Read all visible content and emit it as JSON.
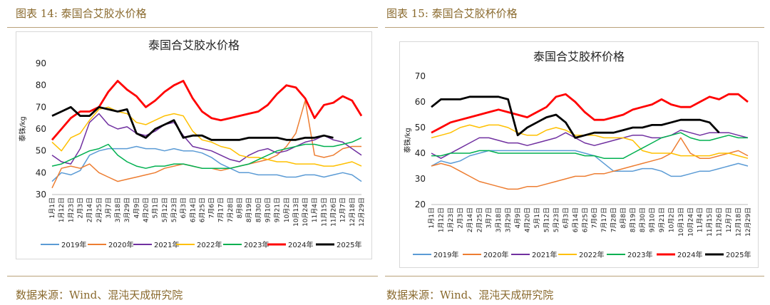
{
  "left_figure": {
    "caption": "图表 14:  泰国合艾胶水价格",
    "source": "数据来源：Wind、混沌天成研究院"
  },
  "right_figure": {
    "caption": "图表 15:  泰国合艾胶杯价格",
    "source": "数据来源：Wind、混沌天成研究院"
  },
  "colors": {
    "2019年": "#5b9bd5",
    "2020年": "#ed7d31",
    "2021年": "#7030a0",
    "2022年": "#ffc000",
    "2023年": "#00b050",
    "2024年": "#ff0000",
    "2025年": "#000000",
    "caption": "#8a6a2e"
  },
  "chart_data": [
    {
      "type": "line",
      "title": "泰国合艾胶水价格",
      "ylabel": "泰铢/kg",
      "xlabel": "",
      "ylim": [
        30,
        90
      ],
      "yticks": [
        30,
        40,
        50,
        60,
        70,
        80,
        90
      ],
      "x_tick_labels": [
        "1月1日",
        "1月12日",
        "1月23日",
        "2月3日",
        "2月14日",
        "2月25日",
        "3月7日",
        "3月18日",
        "3月29日",
        "4月9日",
        "4月20日",
        "5月1日",
        "5月12日",
        "5月23日",
        "6月3日",
        "6月14日",
        "6月25日",
        "7月6日",
        "7月17日",
        "7月28日",
        "8月8日",
        "8月19日",
        "8月30日",
        "9月10日",
        "9月21日",
        "10月2日",
        "10月13日",
        "10月24日",
        "11月4日",
        "11月15日",
        "11月26日",
        "12月7日",
        "12月18日",
        "12月29日"
      ],
      "x_range": [
        0,
        33
      ],
      "legend_position": "bottom",
      "series": [
        {
          "name": "2019年",
          "x": [
            0,
            1,
            2,
            3,
            4,
            5,
            6,
            7,
            8,
            9,
            10,
            11,
            12,
            13,
            14,
            15,
            16,
            17,
            18,
            19,
            20,
            21,
            22,
            23,
            24,
            25,
            26,
            27,
            28,
            29,
            30,
            31,
            32,
            33
          ],
          "values": [
            36,
            40,
            39,
            41,
            48,
            50,
            51,
            51,
            51,
            52,
            51,
            51,
            50,
            51,
            50,
            50,
            49,
            47,
            44,
            42,
            40,
            40,
            39,
            39,
            39,
            38,
            38,
            39,
            39,
            38,
            39,
            40,
            39,
            36
          ]
        },
        {
          "name": "2020年",
          "x": [
            0,
            1,
            2,
            3,
            4,
            5,
            6,
            7,
            8,
            9,
            10,
            11,
            12,
            13,
            14,
            15,
            16,
            17,
            18,
            19,
            20,
            21,
            22,
            23,
            24,
            25,
            26,
            27,
            28,
            29,
            30,
            31,
            32,
            33
          ],
          "values": [
            33,
            42,
            43,
            42,
            44,
            40,
            38,
            36,
            37,
            38,
            39,
            40,
            42,
            43,
            44,
            43,
            42,
            42,
            41,
            42,
            43,
            44,
            45,
            46,
            48,
            52,
            58,
            73,
            48,
            47,
            48,
            51,
            52,
            52
          ]
        },
        {
          "name": "2021年",
          "x": [
            0,
            1,
            2,
            3,
            4,
            5,
            6,
            7,
            8,
            9,
            10,
            11,
            12,
            13,
            14,
            15,
            16,
            17,
            18,
            19,
            20,
            21,
            22,
            23,
            24,
            25,
            26,
            27,
            28,
            29,
            30,
            31,
            32,
            33
          ],
          "values": [
            48,
            45,
            44,
            51,
            63,
            67,
            62,
            60,
            61,
            58,
            57,
            59,
            62,
            63,
            57,
            52,
            51,
            50,
            48,
            46,
            45,
            48,
            50,
            51,
            49,
            50,
            52,
            54,
            55,
            57,
            55,
            54,
            51,
            48
          ]
        },
        {
          "name": "2022年",
          "x": [
            0,
            1,
            2,
            3,
            4,
            5,
            6,
            7,
            8,
            9,
            10,
            11,
            12,
            13,
            14,
            15,
            16,
            17,
            18,
            19,
            20,
            21,
            22,
            23,
            24,
            25,
            26,
            27,
            28,
            29,
            30,
            31,
            32,
            33
          ],
          "values": [
            54,
            50,
            56,
            58,
            64,
            69,
            70,
            68,
            67,
            63,
            62,
            64,
            66,
            67,
            66,
            59,
            55,
            54,
            52,
            51,
            48,
            47,
            47,
            46,
            45,
            45,
            44,
            44,
            44,
            43,
            43,
            44,
            45,
            43
          ]
        },
        {
          "name": "2023年",
          "x": [
            0,
            1,
            2,
            3,
            4,
            5,
            6,
            7,
            8,
            9,
            10,
            11,
            12,
            13,
            14,
            15,
            16,
            17,
            18,
            19,
            20,
            21,
            22,
            23,
            24,
            25,
            26,
            27,
            28,
            29,
            30,
            31,
            32,
            33
          ],
          "values": [
            43,
            44,
            46,
            48,
            50,
            51,
            53,
            48,
            45,
            43,
            42,
            43,
            43,
            44,
            44,
            43,
            42,
            42,
            42,
            42,
            43,
            44,
            46,
            48,
            50,
            51,
            52,
            53,
            53,
            52,
            52,
            53,
            54,
            56
          ]
        },
        {
          "name": "2024年",
          "x": [
            0,
            1,
            2,
            3,
            4,
            5,
            6,
            7,
            8,
            9,
            10,
            11,
            12,
            13,
            14,
            15,
            16,
            17,
            18,
            19,
            20,
            21,
            22,
            23,
            24,
            25,
            26,
            27,
            28,
            29,
            30,
            31,
            32,
            33
          ],
          "values": [
            55,
            60,
            65,
            68,
            68,
            70,
            77,
            82,
            78,
            75,
            70,
            73,
            77,
            80,
            82,
            74,
            68,
            65,
            64,
            65,
            66,
            67,
            68,
            71,
            76,
            80,
            79,
            74,
            65,
            71,
            72,
            75,
            73,
            66
          ]
        },
        {
          "name": "2025年",
          "x": [
            0,
            1,
            2,
            3,
            4,
            5,
            6,
            7,
            8,
            9,
            10,
            11,
            12,
            13,
            14,
            15,
            16,
            17,
            18,
            19,
            20,
            21,
            22,
            23,
            24,
            25,
            26,
            27,
            28,
            29,
            30
          ],
          "values": [
            66,
            68,
            70,
            66,
            66,
            70,
            69,
            68,
            69,
            58,
            56,
            60,
            62,
            64,
            56,
            57,
            57,
            55,
            55,
            55,
            55,
            56,
            56,
            56,
            56,
            55,
            55,
            56,
            56,
            57,
            56
          ]
        }
      ]
    },
    {
      "type": "line",
      "title": "泰国合艾胶杯价格",
      "ylabel": "泰铢/kg",
      "xlabel": "",
      "ylim": [
        20,
        70
      ],
      "yticks": [
        20,
        30,
        40,
        50,
        60,
        70
      ],
      "x_tick_labels": [
        "1月1日",
        "1月12日",
        "1月23日",
        "2月3日",
        "2月14日",
        "2月25日",
        "3月7日",
        "3月18日",
        "3月29日",
        "4月9日",
        "4月20日",
        "5月1日",
        "5月12日",
        "5月23日",
        "6月3日",
        "6月14日",
        "6月25日",
        "7月6日",
        "7月17日",
        "7月28日",
        "8月8日",
        "8月19日",
        "8月30日",
        "9月10日",
        "9月21日",
        "10月2日",
        "10月13日",
        "10月24日",
        "11月4日",
        "11月15日",
        "11月26日",
        "12月7日",
        "12月18日",
        "12月29日"
      ],
      "x_range": [
        0,
        33
      ],
      "legend_position": "bottom",
      "series": [
        {
          "name": "2019年",
          "x": [
            0,
            1,
            2,
            3,
            4,
            5,
            6,
            7,
            8,
            9,
            10,
            11,
            12,
            13,
            14,
            15,
            16,
            17,
            18,
            19,
            20,
            21,
            22,
            23,
            24,
            25,
            26,
            27,
            28,
            29,
            30,
            31,
            32,
            33
          ],
          "values": [
            35,
            37,
            36,
            37,
            39,
            40,
            41,
            41,
            41,
            41,
            41,
            41,
            41,
            41,
            41,
            41,
            40,
            39,
            36,
            33,
            33,
            33,
            34,
            34,
            33,
            31,
            31,
            32,
            33,
            33,
            34,
            35,
            36,
            35
          ]
        },
        {
          "name": "2020年",
          "x": [
            0,
            1,
            2,
            3,
            4,
            5,
            6,
            7,
            8,
            9,
            10,
            11,
            12,
            13,
            14,
            15,
            16,
            17,
            18,
            19,
            20,
            21,
            22,
            23,
            24,
            25,
            26,
            27,
            28,
            29,
            30,
            31,
            32,
            33
          ],
          "values": [
            35,
            36,
            35,
            33,
            31,
            29,
            28,
            27,
            26,
            26,
            27,
            27,
            28,
            29,
            30,
            31,
            31,
            32,
            32,
            33,
            34,
            35,
            36,
            37,
            38,
            40,
            46,
            40,
            38,
            38,
            39,
            40,
            41,
            39
          ]
        },
        {
          "name": "2021年",
          "x": [
            0,
            1,
            2,
            3,
            4,
            5,
            6,
            7,
            8,
            9,
            10,
            11,
            12,
            13,
            14,
            15,
            16,
            17,
            18,
            19,
            20,
            21,
            22,
            23,
            24,
            25,
            26,
            27,
            28,
            29,
            30,
            31,
            32,
            33
          ],
          "values": [
            40,
            38,
            40,
            42,
            44,
            46,
            46,
            45,
            44,
            44,
            43,
            44,
            45,
            46,
            48,
            46,
            44,
            43,
            44,
            45,
            46,
            47,
            47,
            46,
            46,
            47,
            49,
            48,
            47,
            48,
            48,
            48,
            47,
            46
          ]
        },
        {
          "name": "2022年",
          "x": [
            0,
            1,
            2,
            3,
            4,
            5,
            6,
            7,
            8,
            9,
            10,
            11,
            12,
            13,
            14,
            15,
            16,
            17,
            18,
            19,
            20,
            21,
            22,
            23,
            24,
            25,
            26,
            27,
            28,
            29,
            30,
            31,
            32,
            33
          ],
          "values": [
            46,
            47,
            48,
            50,
            51,
            50,
            51,
            51,
            50,
            48,
            47,
            47,
            49,
            50,
            49,
            47,
            47,
            47,
            46,
            46,
            46,
            45,
            41,
            40,
            40,
            40,
            39,
            39,
            39,
            39,
            40,
            40,
            39,
            38
          ]
        },
        {
          "name": "2023年",
          "x": [
            0,
            1,
            2,
            3,
            4,
            5,
            6,
            7,
            8,
            9,
            10,
            11,
            12,
            13,
            14,
            15,
            16,
            17,
            18,
            19,
            20,
            21,
            22,
            23,
            24,
            25,
            26,
            27,
            28,
            29,
            30,
            31,
            32,
            33
          ],
          "values": [
            39,
            39,
            40,
            40,
            40,
            41,
            41,
            40,
            40,
            40,
            40,
            40,
            40,
            40,
            40,
            40,
            39,
            39,
            38,
            38,
            38,
            40,
            42,
            44,
            46,
            47,
            48,
            46,
            45,
            45,
            46,
            47,
            46,
            46
          ]
        },
        {
          "name": "2024年",
          "x": [
            0,
            1,
            2,
            3,
            4,
            5,
            6,
            7,
            8,
            9,
            10,
            11,
            12,
            13,
            14,
            15,
            16,
            17,
            18,
            19,
            20,
            21,
            22,
            23,
            24,
            25,
            26,
            27,
            28,
            29,
            30,
            31,
            32,
            33
          ],
          "values": [
            48,
            50,
            52,
            53,
            54,
            55,
            56,
            57,
            56,
            55,
            54,
            56,
            58,
            62,
            63,
            60,
            56,
            53,
            53,
            54,
            55,
            57,
            58,
            59,
            61,
            59,
            58,
            58,
            60,
            62,
            61,
            63,
            63,
            60
          ]
        },
        {
          "name": "2025年",
          "x": [
            0,
            1,
            2,
            3,
            4,
            5,
            6,
            7,
            8,
            9,
            10,
            11,
            12,
            13,
            14,
            15,
            16,
            17,
            18,
            19,
            20,
            21,
            22,
            23,
            24,
            25,
            26,
            27,
            28,
            29,
            30
          ],
          "values": [
            58,
            61,
            61,
            61,
            62,
            62,
            62,
            62,
            61,
            47,
            50,
            52,
            54,
            55,
            52,
            46,
            47,
            48,
            48,
            48,
            49,
            50,
            50,
            51,
            51,
            52,
            53,
            53,
            53,
            52,
            48
          ]
        }
      ]
    }
  ]
}
